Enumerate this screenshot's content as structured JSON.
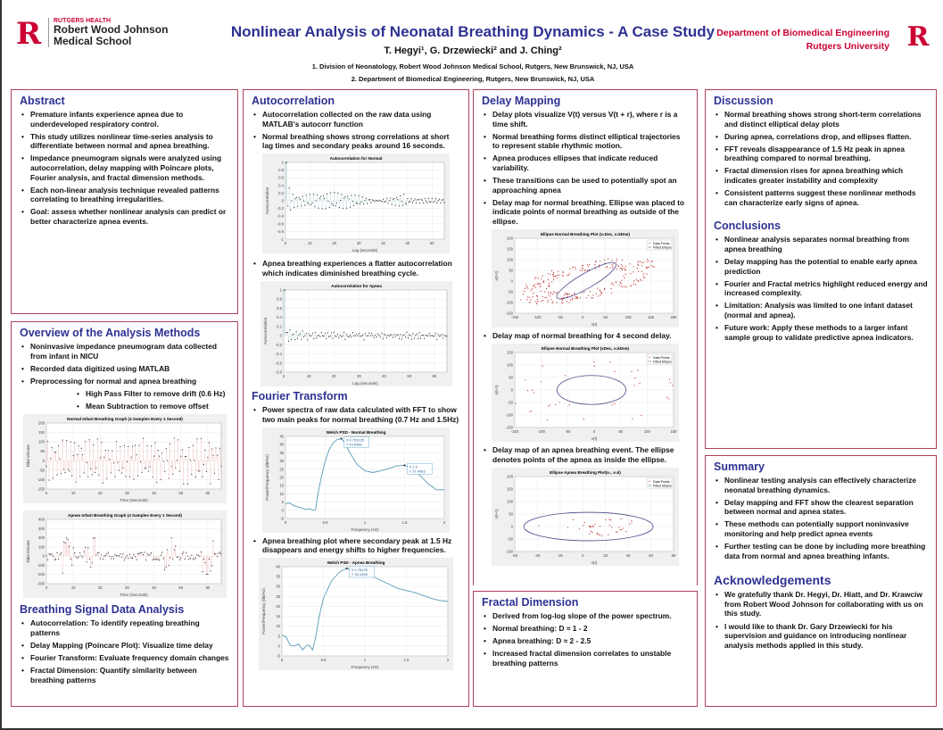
{
  "header": {
    "logo_letter": "R",
    "inst_small": "RUTGERS HEALTH",
    "inst_line1": "Robert Wood Johnson",
    "inst_line2": "Medical School",
    "title": "Nonlinear Analysis of Neonatal Breathing Dynamics - A Case Study",
    "authors": "T. Hegyi¹, G. Drzewiecki² and J. Ching²",
    "affiliation1": "1. Division of Neonatology, Robert Wood Johnson Medical School, Rutgers, New Brunswick, NJ, USA",
    "affiliation2": "2. Department of Biomedical Engineering, Rutgers, New Brunswick, NJ, USA",
    "dept_line1": "Department of Biomedical Engineering",
    "dept_line2": "Rutgers University"
  },
  "abstract": {
    "heading": "Abstract",
    "items": [
      "Premature infants experience apnea due to underdeveloped respiratory control.",
      "This study utilizes nonlinear time-series analysis to differentiate between normal and apnea breathing.",
      "Impedance pneumogram signals were analyzed using autocorrelation, delay mapping with Poincare plots, Fourier analysis, and fractal dimension methods.",
      "Each non-linear analysis technique revealed patterns correlating to breathing irregularities.",
      "Goal: assess whether nonlinear analysis can predict or better characterize apnea events."
    ]
  },
  "overview": {
    "heading": "Overview of the Analysis Methods",
    "items": [
      "Noninvasive impedance pneumogram data collected from infant in NICU",
      "Recorded data digitized using MATLAB",
      "Preprocessing for normal and apnea breathing"
    ],
    "subitems": [
      "High Pass Filter to remove drift (0.6 Hz)",
      "Mean Subtraction to remove offset"
    ]
  },
  "breathing_analysis": {
    "heading": "Breathing Signal Data Analysis",
    "items": [
      "Autocorrelation: To identify repeating breathing patterns",
      "Delay Mapping (Poincare Plot): Visualize time delay",
      "Fourier Transform: Evaluate frequency domain changes",
      "Fractal Dimension: Quantify similarity between breathing patterns"
    ]
  },
  "autocorrelation": {
    "heading": "Autocorrelation",
    "items": [
      "Autocorrelation collected on the raw data using MATLAB's autocorr function",
      "Normal breathing shows strong correlations at short lag times and secondary peaks around 16 seconds.",
      "Apnea breathing experiences a flatter autocorrelation which indicates diminished breathing cycle."
    ]
  },
  "fourier": {
    "heading": "Fourier Transform",
    "items": [
      "Power spectra of raw data calculated with FFT to show two main peaks for normal breathing (0.7 Hz and 1.5Hz)",
      "Apnea breathing plot where secondary peak at 1.5 Hz disappears and energy shifts to higher frequencies."
    ]
  },
  "delay": {
    "heading": "Delay Mapping",
    "items": [
      "Delay plots visualize V(t) versus V(t + r), where r is a time shift.",
      "Normal breathing forms distinct elliptical trajectories to represent stable rhythmic motion.",
      "Apnea produces ellipses that indicate reduced variability.",
      "These transitions can be used to potentially spot an approaching apnea",
      "Delay map for normal breathing.  Ellipse was placed to indicate points of normal breathing as outside of the ellipse.",
      "Delay map of normal breathing for 4 second delay.",
      "Delay map of an apnea breathing event. The ellipse denotes points of  the apnea as inside the ellipse."
    ]
  },
  "fractal": {
    "heading": "Fractal Dimension",
    "items": [
      "Derived from log-log slope of the power spectrum.",
      "Normal breathing: D ≈ 1 - 2",
      "Apnea breathing: D ≈ 2 - 2.5",
      "Increased fractal dimension correlates to unstable breathing patterns"
    ]
  },
  "discussion": {
    "heading": "Discussion",
    "items": [
      "Normal breathing shows strong short-term correlations and distinct elliptical delay plots",
      "During apnea, correlations drop, and ellipses flatten.",
      "FFT reveals disappearance of 1.5 Hz peak in apnea breathing compared to normal breathing.",
      "Fractal dimension rises for apnea breathing which indicates greater instability and complexity",
      "Consistent patterns suggest these nonlinear methods can characterize early signs of apnea."
    ]
  },
  "conclusions": {
    "heading": "Conclusions",
    "items": [
      "Nonlinear analysis separates normal breathing from apnea breathing",
      "Delay mapping has the potential to enable early apnea prediction",
      "Fourier and Fractal metrics highlight reduced energy and increased complexity.",
      "Limitation: Analysis was limited to one infant dataset (normal and apnea).",
      "Future work: Apply these methods to a larger infant sample group to validate predictive apnea indicators."
    ]
  },
  "summary": {
    "heading": "Summary",
    "items": [
      "Nonlinear testing analysis can effectively characterize neonatal breathing dynamics.",
      "Delay mapping and FFT show the clearest separation between normal and apnea states.",
      "These methods can potentially support noninvasive monitoring and help predict apnea events",
      "Further testing can be done by including more breathing data from normal and apnea breathing infants."
    ]
  },
  "acknowledgements": {
    "heading": "Acknowledgements",
    "items": [
      "We gratefully thank Dr. Hegyi, Dr. Hiatt, and Dr. Krawciw from Robert Wood Johnson for collaborating with us on this study.",
      "I would like to thank Dr. Gary Drzewiecki for his supervision and guidance on introducing nonlinear analysis methods applied in this study."
    ]
  },
  "colors": {
    "heading": "#2e3192",
    "border": "#b0405a",
    "brand": "#cc0033"
  },
  "chart_data": [
    {
      "id": "normal_signal",
      "type": "stem",
      "title": "Normal Infant Breathing Graph (4 Samples Every 1 Second)",
      "xlabel": "Time (Seconds)",
      "ylabel": "Tidal Volume",
      "xlim": [
        0,
        65
      ],
      "ylim": [
        -150,
        200
      ],
      "xticks": [
        0,
        10,
        20,
        30,
        40,
        50,
        60
      ],
      "yticks": [
        -150,
        -100,
        -50,
        0,
        50,
        100,
        150,
        200
      ],
      "color": "#e07070"
    },
    {
      "id": "apnea_signal",
      "type": "stem",
      "title": "Apnea Infant Breathing Graph (4 Samples Every 1 Second)",
      "xlabel": "Time (Seconds)",
      "ylabel": "Tidal Volume",
      "xlim": [
        0,
        65
      ],
      "ylim": [
        -300,
        400
      ],
      "xticks": [
        0,
        10,
        20,
        30,
        40,
        50,
        60
      ],
      "yticks": [
        -300,
        -200,
        -100,
        0,
        100,
        200,
        300,
        400
      ],
      "color": "#e07070"
    },
    {
      "id": "autocorr_normal",
      "type": "stem",
      "title": "Autocorrelation for Normal",
      "xlabel": "Lag (seconds)",
      "ylabel": "Autocorrelation",
      "xlim": [
        0,
        65
      ],
      "ylim": [
        -1,
        1
      ],
      "xticks": [
        0,
        10,
        20,
        30,
        40,
        50,
        60
      ],
      "yticks": [
        -1,
        -0.8,
        -0.6,
        -0.4,
        -0.2,
        0,
        0.2,
        0.4,
        0.6,
        0.8,
        1
      ],
      "color": "#5aa0b0"
    },
    {
      "id": "autocorr_apnea",
      "type": "stem",
      "title": "Autocorrelation for Apnea",
      "xlabel": "Lag (seconds)",
      "ylabel": "Autocorrelation",
      "xlim": [
        0,
        65
      ],
      "ylim": [
        -0.8,
        1
      ],
      "xticks": [
        0,
        10,
        20,
        30,
        40,
        50,
        60
      ],
      "yticks": [
        -0.8,
        -0.6,
        -0.4,
        -0.2,
        0,
        0.2,
        0.4,
        0.6,
        0.8,
        1
      ],
      "color": "#5aa0b0"
    },
    {
      "id": "psd_normal",
      "type": "line",
      "title": "Welch PSD - Normal Breathing",
      "xlabel": "Frequency (Hz)",
      "ylabel": "Power/Frequency (dB/Hz)",
      "xlim": [
        0,
        2
      ],
      "ylim": [
        -5,
        45
      ],
      "xticks": [
        0,
        0.5,
        1,
        1.5,
        2
      ],
      "yticks": [
        -5,
        0,
        5,
        10,
        15,
        20,
        25,
        30,
        35,
        40,
        45
      ],
      "color": "#5a9ab8",
      "x": [
        0,
        0.05,
        0.1,
        0.15,
        0.2,
        0.25,
        0.3,
        0.35,
        0.38,
        0.4,
        0.45,
        0.5,
        0.55,
        0.6,
        0.65,
        0.703125,
        0.75,
        0.8,
        0.9,
        1.0,
        1.1,
        1.2,
        1.3,
        1.4,
        1.5,
        1.6,
        1.7,
        1.8,
        1.9,
        2
      ],
      "y": [
        4,
        4.5,
        3,
        2,
        1.5,
        0.5,
        1,
        0,
        0.5,
        8,
        20,
        30,
        37,
        41,
        43,
        43.6366,
        41,
        36,
        28,
        24,
        23,
        24,
        25.5,
        27,
        27.4083,
        25,
        21,
        16,
        12.5,
        12.5
      ],
      "datatips": [
        {
          "x": 0.703125,
          "y": 43.6366,
          "label_x": "X 0.703125",
          "label_y": "Y 43.6366"
        },
        {
          "x": 1.5,
          "y": 27.4083,
          "label_x": "X 1.5",
          "label_y": "Y 27.4083"
        }
      ]
    },
    {
      "id": "psd_apnea",
      "type": "line",
      "title": "Welch PSD - Apnea Breathing",
      "xlabel": "Frequency (Hz)",
      "ylabel": "Power/Frequency (dB/Hz)",
      "xlim": [
        0,
        2
      ],
      "ylim": [
        -5,
        40
      ],
      "xticks": [
        0,
        0.5,
        1,
        1.5,
        2
      ],
      "yticks": [
        -5,
        0,
        5,
        10,
        15,
        20,
        25,
        30,
        35,
        40
      ],
      "color": "#5a9ab8",
      "x": [
        0,
        0.05,
        0.1,
        0.15,
        0.2,
        0.25,
        0.3,
        0.33,
        0.37,
        0.4,
        0.45,
        0.5,
        0.6,
        0.7,
        0.78125,
        0.9,
        1.0,
        1.1,
        1.2,
        1.3,
        1.4,
        1.5,
        1.6,
        1.7,
        1.8,
        1.9,
        2
      ],
      "y": [
        5.5,
        4.5,
        0.5,
        0,
        1,
        -2,
        0.5,
        0.3,
        -2,
        3,
        15,
        24,
        33,
        37.5,
        39.1255,
        37.5,
        37,
        35,
        33,
        31,
        29,
        28,
        27,
        25.5,
        24,
        23,
        22.5
      ],
      "datatips": [
        {
          "x": 0.78125,
          "y": 39.1255,
          "label_x": "X 0.78125",
          "label_y": "Y 39.1255"
        }
      ]
    },
    {
      "id": "ellipse_normal_1",
      "type": "scatter",
      "title": "Ellipse Normal Breathing Plot (v₁Dec, v₁kDne)",
      "xlabel": "v(t)",
      "ylabel": "v(t+τ)",
      "xlim": [
        -150,
        200
      ],
      "ylim": [
        -150,
        200
      ],
      "xticks": [
        -150,
        -100,
        -50,
        0,
        50,
        100,
        150,
        200
      ],
      "yticks": [
        -150,
        -100,
        -50,
        0,
        50,
        100,
        150,
        200
      ],
      "legend": [
        "Data Points",
        "Fitted Ellipse"
      ],
      "ellipse": {
        "cx": 8,
        "cy": 2,
        "a": 75,
        "b": 35,
        "angle_deg": 30
      },
      "points": "ring",
      "n": 260
    },
    {
      "id": "ellipse_normal_2",
      "type": "scatter",
      "title": "Ellipse Normal Breathing Plot (vDec, v₁kDne)",
      "xlabel": "v(t)",
      "ylabel": "v(t+τ)",
      "xlim": [
        -150,
        150
      ],
      "ylim": [
        -150,
        150
      ],
      "xticks": [
        -150,
        -100,
        -50,
        0,
        50,
        100,
        150
      ],
      "yticks": [
        -150,
        -100,
        -50,
        0,
        50,
        100,
        150
      ],
      "legend": [
        "Data Points",
        "Fitted Ellipse"
      ],
      "ellipse": {
        "cx": -5,
        "cy": 0,
        "a": 65,
        "b": 58,
        "angle_deg": 0
      },
      "points": "outside",
      "n": 35
    },
    {
      "id": "ellipse_apnea",
      "type": "scatter",
      "title": "Ellipse Apnea Breathing Plot(v₁, v₁k)",
      "xlabel": "v(t)",
      "ylabel": "v(t+τ)",
      "xlim": [
        -60,
        80
      ],
      "ylim": [
        -100,
        200
      ],
      "xticks": [
        -60,
        -40,
        -20,
        0,
        20,
        40,
        60,
        80
      ],
      "yticks": [
        -100,
        -50,
        0,
        50,
        100,
        150,
        200
      ],
      "legend": [
        "Data Points",
        "Fitted Ellipse"
      ],
      "ellipse": {
        "cx": 5,
        "cy": 0,
        "a": 57,
        "b": 57,
        "angle_deg": 0
      },
      "points": "inside",
      "n": 40
    }
  ]
}
